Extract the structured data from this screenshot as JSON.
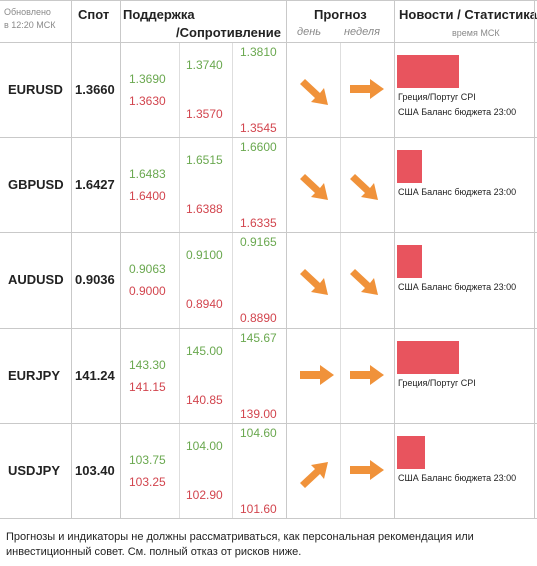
{
  "updated": {
    "line1": "Обновлено",
    "line2": "в 12:20 МСК"
  },
  "header": {
    "spot": "Спот",
    "support": "Поддержка",
    "resistance": "/Сопротивление",
    "forecast": "Прогноз",
    "day": "день",
    "week": "неделя",
    "news": "Новости / Статистика",
    "time_note": "время МСК"
  },
  "colors": {
    "up": "#6aa84f",
    "down": "#d2454e",
    "arrow": "#f0923a",
    "news_bar": "#e8545e"
  },
  "rows": [
    {
      "pair": "EURUSD",
      "spot": "1.3660",
      "s1": "1.3690",
      "s2": "1.3630",
      "r1": "1.3740",
      "r2": "1.3570",
      "r3": "1.3810",
      "r4": "1.3545",
      "day_arrow": "down-right-arrow-icon",
      "week_arrow": "right-arrow-icon",
      "news_level": 1.0,
      "news": [
        "Греция/Португ CPI",
        "США Баланс бюджета 23:00"
      ]
    },
    {
      "pair": "GBPUSD",
      "spot": "1.6427",
      "s1": "1.6483",
      "s2": "1.6400",
      "r1": "1.6515",
      "r2": "1.6388",
      "r3": "1.6600",
      "r4": "1.6335",
      "day_arrow": "down-right-arrow-icon",
      "week_arrow": "down-right-arrow-icon",
      "news_level": 0.4,
      "news": [
        "США Баланс бюджета 23:00"
      ]
    },
    {
      "pair": "AUDUSD",
      "spot": "0.9036",
      "s1": "0.9063",
      "s2": "0.9000",
      "r1": "0.9100",
      "r2": "0.8940",
      "r3": "0.9165",
      "r4": "0.8890",
      "day_arrow": "down-right-arrow-icon",
      "week_arrow": "down-right-arrow-icon",
      "news_level": 0.4,
      "news": [
        "США Баланс бюджета 23:00"
      ]
    },
    {
      "pair": "EURJPY",
      "spot": "141.24",
      "s1": "143.30",
      "s2": "141.15",
      "r1": "145.00",
      "r2": "140.85",
      "r3": "145.67",
      "r4": "139.00",
      "day_arrow": "right-arrow-icon",
      "week_arrow": "right-arrow-icon",
      "news_level": 1.0,
      "news": [
        "Греция/Португ CPI"
      ]
    },
    {
      "pair": "USDJPY",
      "spot": "103.40",
      "s1": "103.75",
      "s2": "103.25",
      "r1": "104.00",
      "r2": "102.90",
      "r3": "104.60",
      "r4": "101.60",
      "day_arrow": "up-right-arrow-icon",
      "week_arrow": "right-arrow-icon",
      "news_level": 0.45,
      "news": [
        "США Баланс бюджета 23:00"
      ]
    }
  ],
  "disclaimer": "Прогнозы и индикаторы не должны рассматриваться, как персональная рекомендация или инвестиционный совет. См. полный отказ от рисков ниже."
}
